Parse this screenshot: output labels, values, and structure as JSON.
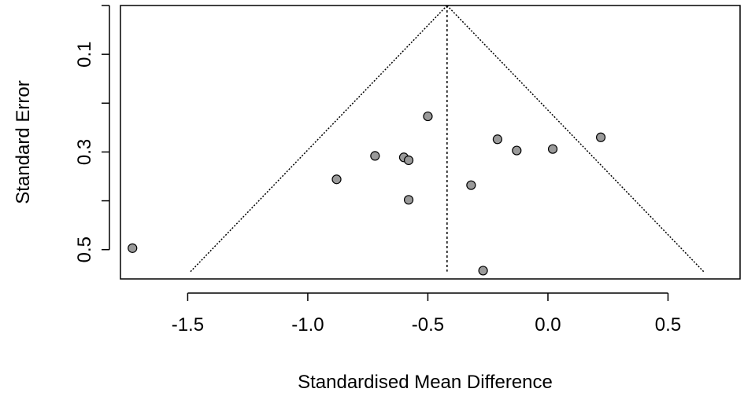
{
  "chart_data": {
    "type": "scatter",
    "title": "",
    "xlabel": "Standardised Mean Difference",
    "ylabel": "Standard Error",
    "xlim": [
      -1.78,
      0.8
    ],
    "ylim": [
      0,
      0.56
    ],
    "y_reversed": true,
    "x_ticks": [
      -1.5,
      -1.0,
      -0.5,
      0.0,
      0.5
    ],
    "x_tick_labels": [
      "-1.5",
      "-1.0",
      "-0.5",
      "0.0",
      "0.5"
    ],
    "y_ticks": [
      0.1,
      0.3,
      0.5
    ],
    "y_tick_labels": [
      "0.1",
      "0.3",
      "0.5"
    ],
    "grid": false,
    "legend": "none",
    "pooled_estimate": -0.42,
    "funnel_max_se": 0.545,
    "points": [
      {
        "x": -1.73,
        "y": 0.497
      },
      {
        "x": -0.88,
        "y": 0.356
      },
      {
        "x": -0.72,
        "y": 0.308
      },
      {
        "x": -0.6,
        "y": 0.311
      },
      {
        "x": -0.58,
        "y": 0.317
      },
      {
        "x": -0.58,
        "y": 0.398
      },
      {
        "x": -0.5,
        "y": 0.227
      },
      {
        "x": -0.32,
        "y": 0.368
      },
      {
        "x": -0.27,
        "y": 0.543
      },
      {
        "x": -0.21,
        "y": 0.274
      },
      {
        "x": -0.13,
        "y": 0.297
      },
      {
        "x": 0.02,
        "y": 0.294
      },
      {
        "x": 0.22,
        "y": 0.27
      }
    ],
    "colors": {
      "point_fill": "#9a9a9a",
      "point_stroke": "#000000",
      "axis": "#000000",
      "reference_lines": "#000000"
    }
  }
}
